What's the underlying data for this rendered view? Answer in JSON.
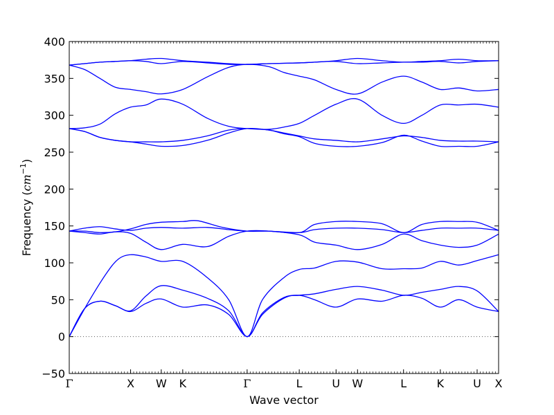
{
  "chart_data": {
    "type": "line",
    "title": "",
    "xlabel": "Wave vector",
    "ylabel": "Frequency",
    "ylabel_unit_base": "cm",
    "ylabel_unit_exp": "−1",
    "ylim": [
      -50,
      400
    ],
    "yticks": [
      -50,
      0,
      50,
      100,
      150,
      200,
      250,
      300,
      350,
      400
    ],
    "grid": false,
    "legend": "none",
    "line_color": "#0000ff",
    "zero_line_color": "#555555",
    "xlim": [
      0,
      14.0
    ],
    "high_symmetry_points": [
      {
        "label": "Γ",
        "x": 0.0
      },
      {
        "label": "X",
        "x": 2.0
      },
      {
        "label": "W",
        "x": 3.0
      },
      {
        "label": "K",
        "x": 3.7
      },
      {
        "label": "Γ",
        "x": 5.8
      },
      {
        "label": "L",
        "x": 7.5
      },
      {
        "label": "U",
        "x": 8.7
      },
      {
        "label": "W",
        "x": 9.4
      },
      {
        "label": "L",
        "x": 10.9
      },
      {
        "label": "K",
        "x": 12.1
      },
      {
        "label": "U",
        "x": 13.3
      },
      {
        "label": "X",
        "x": 14.0
      }
    ],
    "series": [
      {
        "x": [
          0,
          0.5,
          1.0,
          1.5,
          2.0,
          2.5,
          3.0,
          3.7,
          4.5,
          5.2,
          5.8,
          6.3,
          7.0,
          7.5,
          8.0,
          8.7,
          9.4,
          10.2,
          10.9,
          11.5,
          12.1,
          12.7,
          13.3,
          14.0
        ],
        "y": [
          0,
          38,
          48,
          42,
          34,
          45,
          51,
          40,
          43,
          30,
          0,
          30,
          52,
          56,
          50,
          40,
          51,
          48,
          56,
          52,
          40,
          50,
          40,
          34
        ]
      },
      {
        "x": [
          0,
          0.5,
          1.0,
          1.5,
          2.0,
          2.5,
          3.0,
          3.7,
          4.5,
          5.2,
          5.8,
          6.3,
          7.0,
          7.5,
          8.0,
          8.7,
          9.4,
          10.2,
          10.9,
          11.5,
          12.1,
          12.7,
          13.3,
          14.0
        ],
        "y": [
          0,
          38,
          48,
          42,
          35,
          55,
          69,
          63,
          52,
          35,
          0,
          32,
          53,
          56,
          58,
          64,
          68,
          63,
          56,
          60,
          64,
          68,
          62,
          34
        ]
      },
      {
        "x": [
          0,
          0.6,
          1.2,
          1.6,
          2.0,
          2.5,
          3.0,
          3.7,
          4.5,
          5.2,
          5.8,
          6.3,
          7.0,
          7.5,
          8.0,
          8.7,
          9.4,
          10.2,
          10.9,
          11.5,
          12.1,
          12.7,
          13.3,
          14.0
        ],
        "y": [
          0,
          45,
          85,
          105,
          111,
          108,
          102,
          102,
          80,
          50,
          0,
          50,
          80,
          91,
          93,
          102,
          101,
          92,
          92,
          93,
          102,
          97,
          103,
          111
        ]
      },
      {
        "x": [
          0,
          0.5,
          1.0,
          1.5,
          2.0,
          2.5,
          3.0,
          3.7,
          4.5,
          5.2,
          5.8,
          6.5,
          7.5,
          8.0,
          8.7,
          9.4,
          10.2,
          10.9,
          11.5,
          12.1,
          12.7,
          13.3,
          14.0
        ],
        "y": [
          143,
          141,
          139,
          142,
          140,
          128,
          118,
          125,
          122,
          136,
          143,
          143,
          138,
          128,
          124,
          118,
          125,
          139,
          130,
          124,
          121,
          124,
          139
        ]
      },
      {
        "x": [
          0,
          0.5,
          1.0,
          1.5,
          2.0,
          2.5,
          3.0,
          3.7,
          4.5,
          5.2,
          5.8,
          6.5,
          7.5,
          8.0,
          8.7,
          9.4,
          10.2,
          10.9,
          11.5,
          12.1,
          12.7,
          13.3,
          14.0
        ],
        "y": [
          143,
          147,
          149,
          146,
          144,
          147,
          148,
          147,
          148,
          145,
          143,
          143,
          141,
          145,
          147,
          147,
          145,
          141,
          144,
          147,
          147,
          147,
          144
        ]
      },
      {
        "x": [
          0,
          0.5,
          1.0,
          1.5,
          2.0,
          2.5,
          3.0,
          3.7,
          4.2,
          5.0,
          5.8,
          6.5,
          7.5,
          8.0,
          8.7,
          9.4,
          10.2,
          10.9,
          11.5,
          12.1,
          12.7,
          13.3,
          14.0
        ],
        "y": [
          143,
          143,
          141,
          142,
          146,
          152,
          155,
          156,
          157,
          148,
          143,
          143,
          141,
          152,
          156,
          156,
          153,
          141,
          152,
          156,
          156,
          155,
          144
        ]
      },
      {
        "x": [
          0,
          0.5,
          1.0,
          1.5,
          2.0,
          2.5,
          3.0,
          3.7,
          4.5,
          5.2,
          5.8,
          6.5,
          7.0,
          7.5,
          8.0,
          8.7,
          9.4,
          10.2,
          10.9,
          11.5,
          12.1,
          12.7,
          13.3,
          14.0
        ],
        "y": [
          282,
          278,
          270,
          266,
          264,
          261,
          258,
          259,
          266,
          276,
          282,
          280,
          275,
          271,
          262,
          258,
          258,
          263,
          273,
          265,
          258,
          258,
          258,
          264
        ]
      },
      {
        "x": [
          0,
          0.5,
          1.0,
          1.5,
          2.0,
          2.5,
          3.0,
          3.7,
          4.5,
          5.2,
          5.8,
          6.5,
          7.0,
          7.5,
          8.0,
          8.7,
          9.4,
          10.2,
          10.9,
          11.5,
          12.1,
          12.7,
          13.3,
          14.0
        ],
        "y": [
          282,
          278,
          270,
          266,
          264,
          264,
          264,
          266,
          272,
          280,
          282,
          280,
          276,
          272,
          268,
          266,
          264,
          268,
          272,
          270,
          266,
          265,
          265,
          264
        ]
      },
      {
        "x": [
          0,
          0.5,
          1.0,
          1.5,
          2.0,
          2.5,
          3.0,
          3.7,
          4.5,
          5.2,
          5.8,
          6.5,
          7.0,
          7.5,
          8.0,
          8.7,
          9.4,
          10.2,
          10.9,
          11.5,
          12.1,
          12.7,
          13.3,
          14.0
        ],
        "y": [
          282,
          283,
          288,
          302,
          311,
          314,
          322,
          315,
          296,
          285,
          282,
          281,
          284,
          289,
          300,
          315,
          322,
          300,
          289,
          300,
          314,
          314,
          315,
          311
        ]
      },
      {
        "x": [
          0,
          0.5,
          1.0,
          1.5,
          2.0,
          2.5,
          3.0,
          3.7,
          4.5,
          5.2,
          5.8,
          6.5,
          7.0,
          7.5,
          8.0,
          8.7,
          9.4,
          10.2,
          10.9,
          11.5,
          12.1,
          12.7,
          13.3,
          14.0
        ],
        "y": [
          368,
          362,
          350,
          338,
          335,
          332,
          329,
          335,
          352,
          365,
          369,
          366,
          358,
          353,
          348,
          335,
          329,
          345,
          353,
          345,
          335,
          337,
          333,
          335
        ]
      },
      {
        "x": [
          0,
          0.5,
          1.0,
          1.5,
          2.0,
          2.5,
          3.0,
          3.7,
          4.5,
          5.2,
          5.8,
          6.5,
          7.5,
          8.0,
          8.7,
          9.4,
          10.2,
          10.9,
          11.5,
          12.1,
          12.7,
          13.3,
          14.0
        ],
        "y": [
          368,
          370,
          372,
          373,
          374,
          373,
          370,
          373,
          371,
          369,
          369,
          370,
          371,
          372,
          373,
          370,
          371,
          372,
          372,
          373,
          371,
          373,
          374
        ]
      },
      {
        "x": [
          0,
          0.5,
          1.0,
          1.5,
          2.0,
          2.5,
          3.0,
          3.7,
          4.5,
          5.2,
          5.8,
          6.5,
          7.5,
          8.0,
          8.7,
          9.4,
          10.2,
          10.9,
          11.5,
          12.1,
          12.7,
          13.3,
          14.0
        ],
        "y": [
          368,
          370,
          372,
          373,
          374,
          376,
          377,
          374,
          372,
          370,
          369,
          370,
          371,
          372,
          374,
          377,
          374,
          372,
          373,
          374,
          376,
          374,
          374
        ]
      }
    ]
  }
}
